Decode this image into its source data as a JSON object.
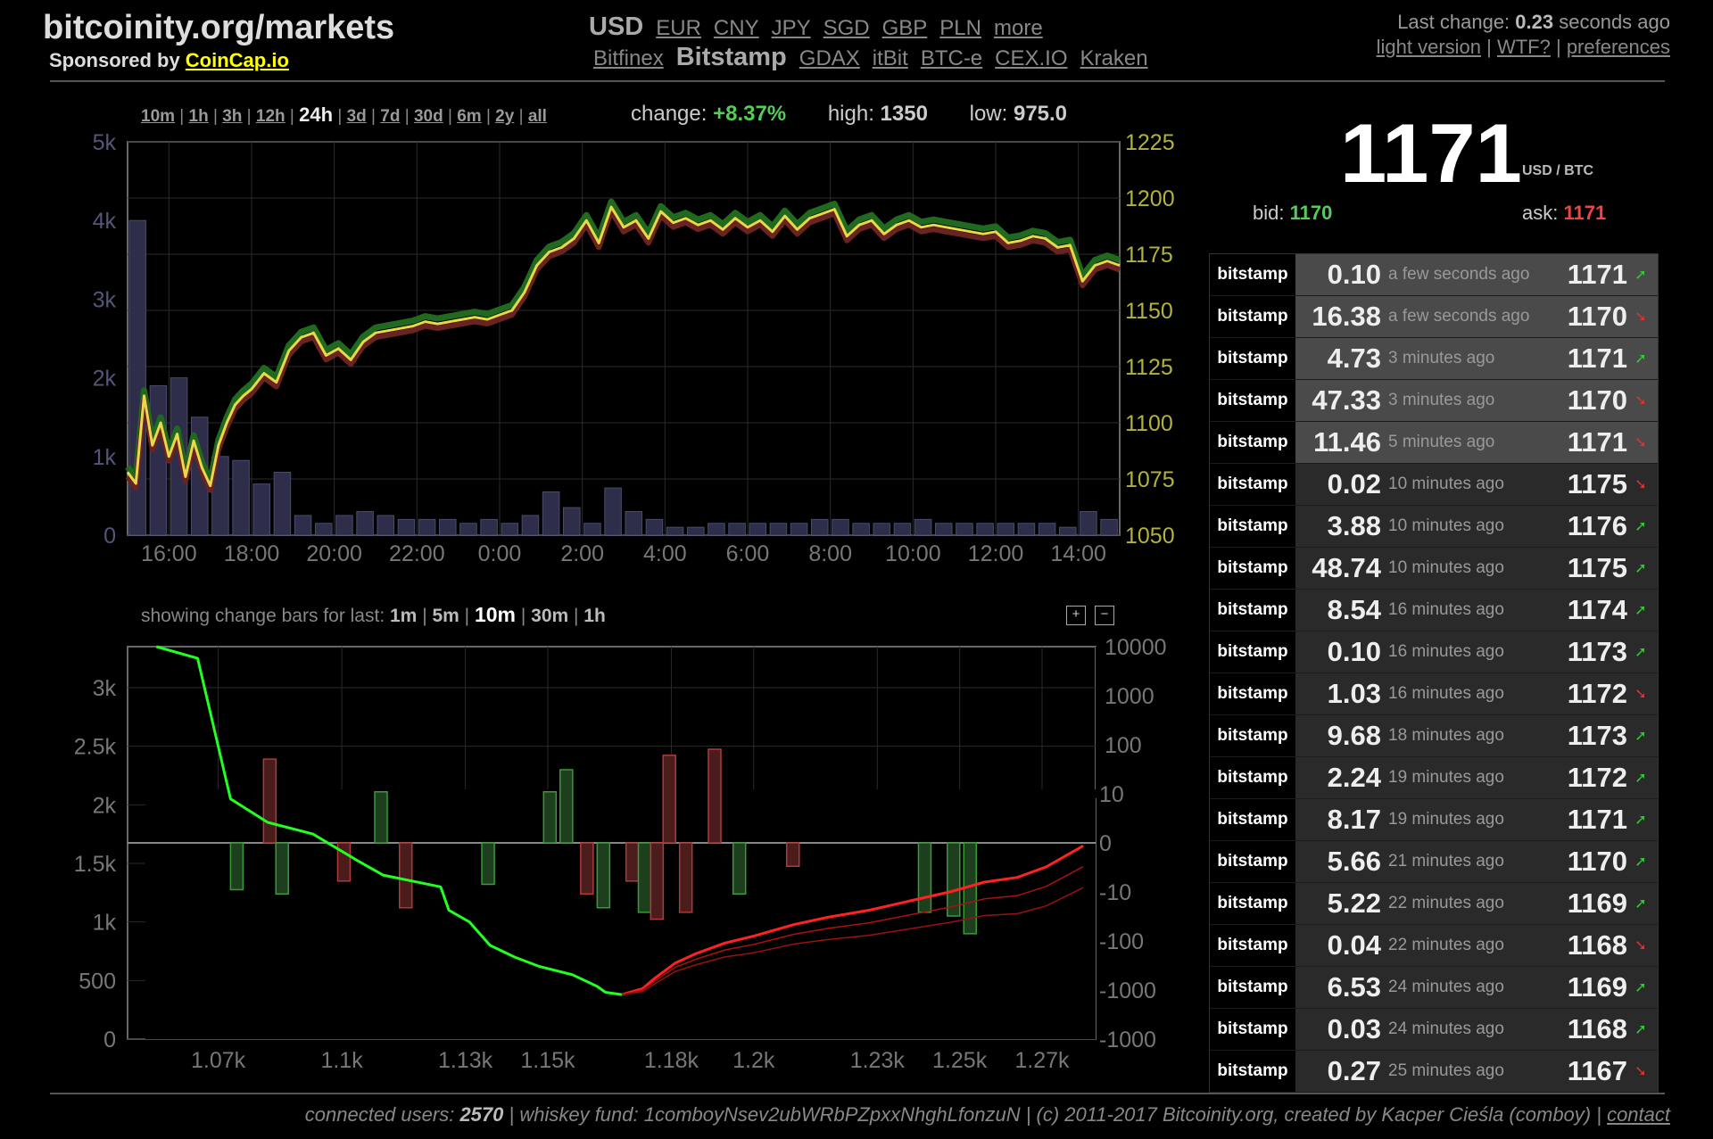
{
  "header": {
    "logo": "bitcoinity.org/markets",
    "sponsor_prefix": "Sponsored by ",
    "sponsor_name": "CoinCap.io",
    "currencies": [
      "USD",
      "EUR",
      "CNY",
      "JPY",
      "SGD",
      "GBP",
      "PLN",
      "more"
    ],
    "active_currency": "USD",
    "exchanges": [
      "Bitfinex",
      "Bitstamp",
      "GDAX",
      "itBit",
      "BTC-e",
      "CEX.IO",
      "Kraken"
    ],
    "active_exchange": "Bitstamp",
    "last_change_label": "Last change: ",
    "last_change_value": "0.23",
    "last_change_suffix": " seconds ago",
    "links": [
      "light version",
      "WTF?",
      "preferences"
    ]
  },
  "ranges": [
    "10m",
    "1h",
    "3h",
    "12h",
    "24h",
    "3d",
    "7d",
    "30d",
    "6m",
    "2y",
    "all"
  ],
  "active_range": "24h",
  "stats": {
    "change_label": "change: ",
    "change_value": "+8.37%",
    "high_label": "high: ",
    "high_value": "1350",
    "low_label": "low: ",
    "low_value": "975.0"
  },
  "ticker": {
    "price": "1171",
    "pair": "USD / BTC",
    "bid_label": "bid: ",
    "bid_value": "1170",
    "ask_label": "ask: ",
    "ask_value": "1171"
  },
  "trades": [
    {
      "exchange": "bitstamp",
      "amount": "0.10",
      "ago": "a few seconds ago",
      "price": "1171",
      "dir": "up"
    },
    {
      "exchange": "bitstamp",
      "amount": "16.38",
      "ago": "a few seconds ago",
      "price": "1170",
      "dir": "down"
    },
    {
      "exchange": "bitstamp",
      "amount": "4.73",
      "ago": "3 minutes ago",
      "price": "1171",
      "dir": "up"
    },
    {
      "exchange": "bitstamp",
      "amount": "47.33",
      "ago": "3 minutes ago",
      "price": "1170",
      "dir": "down"
    },
    {
      "exchange": "bitstamp",
      "amount": "11.46",
      "ago": "5 minutes ago",
      "price": "1171",
      "dir": "down"
    },
    {
      "exchange": "bitstamp",
      "amount": "0.02",
      "ago": "10 minutes ago",
      "price": "1175",
      "dir": "down"
    },
    {
      "exchange": "bitstamp",
      "amount": "3.88",
      "ago": "10 minutes ago",
      "price": "1176",
      "dir": "up"
    },
    {
      "exchange": "bitstamp",
      "amount": "48.74",
      "ago": "10 minutes ago",
      "price": "1175",
      "dir": "up"
    },
    {
      "exchange": "bitstamp",
      "amount": "8.54",
      "ago": "16 minutes ago",
      "price": "1174",
      "dir": "up"
    },
    {
      "exchange": "bitstamp",
      "amount": "0.10",
      "ago": "16 minutes ago",
      "price": "1173",
      "dir": "up"
    },
    {
      "exchange": "bitstamp",
      "amount": "1.03",
      "ago": "16 minutes ago",
      "price": "1172",
      "dir": "down"
    },
    {
      "exchange": "bitstamp",
      "amount": "9.68",
      "ago": "18 minutes ago",
      "price": "1173",
      "dir": "up"
    },
    {
      "exchange": "bitstamp",
      "amount": "2.24",
      "ago": "19 minutes ago",
      "price": "1172",
      "dir": "up"
    },
    {
      "exchange": "bitstamp",
      "amount": "8.17",
      "ago": "19 minutes ago",
      "price": "1171",
      "dir": "up"
    },
    {
      "exchange": "bitstamp",
      "amount": "5.66",
      "ago": "21 minutes ago",
      "price": "1170",
      "dir": "up"
    },
    {
      "exchange": "bitstamp",
      "amount": "5.22",
      "ago": "22 minutes ago",
      "price": "1169",
      "dir": "up"
    },
    {
      "exchange": "bitstamp",
      "amount": "0.04",
      "ago": "22 minutes ago",
      "price": "1168",
      "dir": "down"
    },
    {
      "exchange": "bitstamp",
      "amount": "6.53",
      "ago": "24 minutes ago",
      "price": "1169",
      "dir": "up"
    },
    {
      "exchange": "bitstamp",
      "amount": "0.03",
      "ago": "24 minutes ago",
      "price": "1168",
      "dir": "up"
    },
    {
      "exchange": "bitstamp",
      "amount": "0.27",
      "ago": "25 minutes ago",
      "price": "1167",
      "dir": "down"
    }
  ],
  "change_bars": {
    "label": "showing change bars for last: ",
    "options": [
      "1m",
      "5m",
      "10m",
      "30m",
      "1h"
    ],
    "active": "10m",
    "zoom_in": "+",
    "zoom_out": "−"
  },
  "footer": {
    "users_label": "connected users: ",
    "users_value": "2570",
    "whiskey": " | whiskey fund: 1comboyNsev2ubWRbPZpxxNhghLfonzuN | (c) 2011-2017 Bitcoinity.org, created by Kacper Cieśla (comboy) | ",
    "contact": "contact"
  },
  "colors": {
    "up": "#33cc33",
    "down": "#dd3333",
    "price_line": "#e8d84a",
    "volume": "#2e2e4a",
    "right_axis": "#b3b33a",
    "left_axis": "#55557a"
  },
  "chart_data": [
    {
      "type": "line",
      "title": "",
      "x_ticks": [
        "16:00",
        "18:00",
        "20:00",
        "22:00",
        "0:00",
        "2:00",
        "4:00",
        "6:00",
        "8:00",
        "10:00",
        "12:00",
        "14:00"
      ],
      "price_axis": {
        "ticks": [
          "1050",
          "1075",
          "1100",
          "1125",
          "1150",
          "1175",
          "1200",
          "1225"
        ],
        "range": [
          1050,
          1225
        ]
      },
      "volume_axis": {
        "ticks": [
          "0",
          "1k",
          "2k",
          "3k",
          "4k",
          "5k"
        ],
        "range": [
          0,
          5000
        ]
      },
      "time_range_hours": [
        15.0,
        39.0
      ],
      "price_series": {
        "name": "price",
        "x_hours": [
          15.0,
          15.2,
          15.4,
          15.6,
          15.8,
          16.0,
          16.2,
          16.4,
          16.6,
          16.8,
          17.0,
          17.2,
          17.4,
          17.6,
          17.8,
          18.0,
          18.3,
          18.6,
          18.9,
          19.2,
          19.5,
          19.8,
          20.1,
          20.4,
          20.7,
          21.0,
          21.3,
          21.6,
          21.9,
          22.2,
          22.5,
          22.8,
          23.1,
          23.4,
          23.7,
          24.0,
          24.3,
          24.6,
          24.9,
          25.2,
          25.5,
          25.8,
          26.1,
          26.4,
          26.7,
          27.0,
          27.3,
          27.6,
          27.9,
          28.2,
          28.5,
          28.8,
          29.1,
          29.4,
          29.7,
          30.0,
          30.3,
          30.6,
          30.9,
          31.2,
          31.5,
          31.8,
          32.1,
          32.4,
          32.7,
          33.0,
          33.3,
          33.6,
          33.9,
          34.2,
          34.5,
          34.8,
          35.1,
          35.4,
          35.7,
          36.0,
          36.3,
          36.6,
          36.9,
          37.2,
          37.5,
          37.8,
          38.1,
          38.4,
          38.7,
          39.0
        ],
        "values": [
          1078,
          1073,
          1112,
          1090,
          1100,
          1085,
          1095,
          1076,
          1092,
          1080,
          1072,
          1090,
          1100,
          1108,
          1112,
          1115,
          1122,
          1118,
          1132,
          1138,
          1140,
          1130,
          1133,
          1128,
          1136,
          1140,
          1141,
          1142,
          1143,
          1145,
          1144,
          1145,
          1146,
          1147,
          1146,
          1148,
          1150,
          1158,
          1170,
          1176,
          1178,
          1182,
          1190,
          1180,
          1196,
          1187,
          1190,
          1182,
          1194,
          1189,
          1191,
          1188,
          1190,
          1186,
          1191,
          1187,
          1190,
          1185,
          1192,
          1186,
          1191,
          1193,
          1195,
          1183,
          1188,
          1190,
          1184,
          1188,
          1190,
          1187,
          1188,
          1187,
          1186,
          1185,
          1184,
          1185,
          1180,
          1181,
          1183,
          1182,
          1178,
          1179,
          1163,
          1170,
          1172,
          1170
        ]
      },
      "volume_series": {
        "name": "volume",
        "x_hours": [
          15.0,
          15.5,
          16.0,
          16.5,
          17.0,
          17.5,
          18.0,
          18.5,
          19.0,
          19.5,
          20.0,
          20.5,
          21.0,
          21.5,
          22.0,
          22.5,
          23.0,
          23.5,
          24.0,
          24.5,
          25.0,
          25.5,
          26.0,
          26.5,
          27.0,
          27.5,
          28.0,
          28.5,
          29.0,
          29.5,
          30.0,
          30.5,
          31.0,
          31.5,
          32.0,
          32.5,
          33.0,
          33.5,
          34.0,
          34.5,
          35.0,
          35.5,
          36.0,
          36.5,
          37.0,
          37.5,
          38.0,
          38.5
        ],
        "values": [
          4000,
          1900,
          2000,
          1500,
          1000,
          950,
          650,
          800,
          250,
          150,
          250,
          300,
          250,
          200,
          200,
          200,
          150,
          200,
          150,
          250,
          550,
          350,
          150,
          600,
          300,
          200,
          100,
          100,
          150,
          150,
          150,
          150,
          150,
          200,
          200,
          150,
          150,
          150,
          200,
          150,
          150,
          150,
          150,
          150,
          150,
          100,
          300,
          200
        ]
      }
    },
    {
      "type": "area",
      "title": "",
      "x_ticks": [
        "1.07k",
        "1.1k",
        "1.13k",
        "1.15k",
        "1.18k",
        "1.2k",
        "1.23k",
        "1.25k",
        "1.27k"
      ],
      "x_range": [
        1050,
        1285
      ],
      "depth_axis": {
        "ticks": [
          "0",
          "500",
          "1k",
          "1.5k",
          "2k",
          "2.5k",
          "3k"
        ],
        "range": [
          0,
          3350
        ]
      },
      "change_axis_top": {
        "ticks": [
          "100",
          "1000",
          "10000"
        ]
      },
      "change_axis_bottom": {
        "ticks": [
          "10",
          "0",
          "-10",
          "-100",
          "-1000",
          "-1000"
        ]
      },
      "bids": {
        "x": [
          1057,
          1067,
          1075,
          1084,
          1095,
          1106,
          1112,
          1126,
          1128,
          1133,
          1138,
          1144,
          1150,
          1158,
          1164,
          1166,
          1170
        ],
        "values": [
          3350,
          3250,
          2050,
          1850,
          1750,
          1520,
          1400,
          1300,
          1100,
          1000,
          800,
          700,
          620,
          550,
          450,
          400,
          380
        ]
      },
      "asks": {
        "x": [
          1170,
          1175,
          1178,
          1183,
          1188,
          1195,
          1202,
          1212,
          1220,
          1230,
          1240,
          1250,
          1258,
          1266,
          1273,
          1282
        ],
        "values": [
          380,
          430,
          520,
          650,
          730,
          820,
          880,
          980,
          1040,
          1100,
          1180,
          1260,
          1340,
          1380,
          1470,
          1650
        ]
      },
      "change_bars": {
        "x": [
          1075,
          1083,
          1086,
          1101,
          1110,
          1116,
          1136,
          1151,
          1155,
          1160,
          1164,
          1171,
          1174,
          1177,
          1180,
          1184,
          1191,
          1197,
          1210,
          1242,
          1249,
          1253
        ],
        "values": [
          -8,
          50,
          -10,
          -5,
          10,
          -20,
          -6,
          10,
          30,
          -10,
          -20,
          -5,
          -25,
          -35,
          60,
          -25,
          80,
          -10,
          -2,
          -25,
          -30,
          -70
        ],
        "colors": [
          "up",
          "down",
          "up",
          "down",
          "up",
          "down",
          "up",
          "up",
          "up",
          "down",
          "up",
          "down",
          "up",
          "down",
          "down",
          "down",
          "down",
          "up",
          "down",
          "up",
          "up",
          "up"
        ]
      }
    }
  ]
}
